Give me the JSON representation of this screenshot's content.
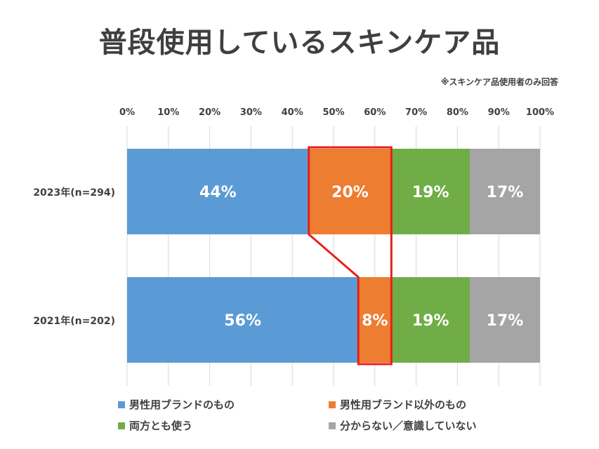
{
  "title": "普段使用しているスキンケア品",
  "note": "※スキンケア品使用者のみ回答",
  "chart_data": {
    "type": "bar",
    "orientation": "horizontal",
    "stacked": true,
    "percent_axis": true,
    "xlim": [
      0,
      100
    ],
    "x_ticks": [
      "0%",
      "10%",
      "20%",
      "30%",
      "40%",
      "50%",
      "60%",
      "70%",
      "80%",
      "90%",
      "100%"
    ],
    "tick_position": "top",
    "grid": true,
    "legend_position": "bottom",
    "categories": [
      "2023年(n=294)",
      "2021年(n=202)"
    ],
    "series": [
      {
        "name": "男性用ブランドのもの",
        "color": "#5b9bd5",
        "values": [
          44,
          56
        ],
        "labels": [
          "44%",
          "56%"
        ]
      },
      {
        "name": "男性用ブランド以外のもの",
        "color": "#ed7d31",
        "values": [
          20,
          8
        ],
        "labels": [
          "20%",
          "8%"
        ]
      },
      {
        "name": "両方とも使う",
        "color": "#70ad47",
        "values": [
          19,
          19
        ],
        "labels": [
          "19%",
          "19%"
        ]
      },
      {
        "name": "分からない／意識していない",
        "color": "#a5a5a5",
        "values": [
          17,
          17
        ],
        "labels": [
          "17%",
          "17%"
        ]
      }
    ],
    "highlight": {
      "series_index": 1,
      "color": "#e8201c"
    }
  }
}
